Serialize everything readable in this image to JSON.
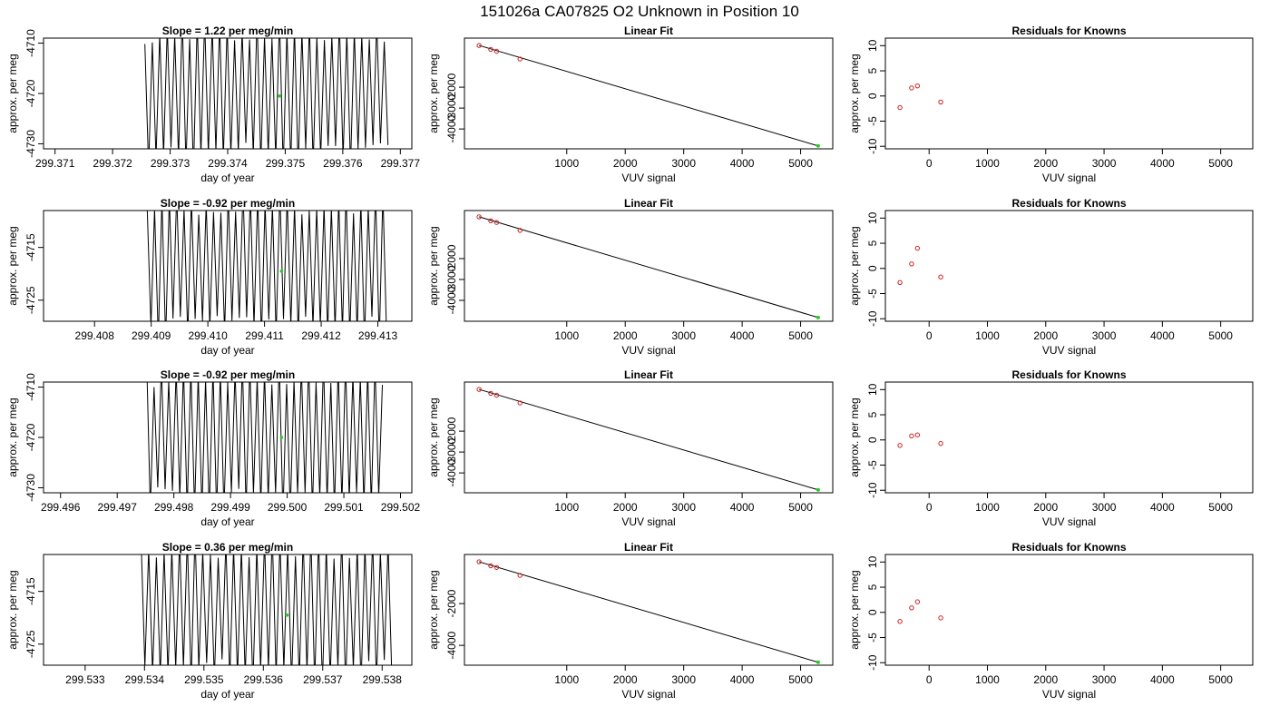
{
  "figure_title": "151026a      CA07825   O2 Unknown in Position  10",
  "chart_data": [
    {
      "type": "line",
      "panel": "timeseries",
      "row": 1,
      "title": "Slope =  1.22  per meg/min",
      "xlabel": "day of year",
      "ylabel": "approx. per meg",
      "xlim": [
        299.3708,
        299.3772
      ],
      "ylim": [
        -4731,
        -4709
      ],
      "xticks": [
        "299.371",
        "299.372",
        "299.373",
        "299.374",
        "299.375",
        "299.376",
        "299.377"
      ],
      "yticks": [
        "-4710",
        "-4720",
        "-4730"
      ],
      "trace": {
        "start": 299.3725,
        "end": 299.3768,
        "period": 0.00013,
        "offset_x": 6e-05
      },
      "marker": {
        "x": 299.3749,
        "y": -4720.5,
        "color": "#22cc22"
      },
      "line_color": "#000000"
    },
    {
      "type": "scatter",
      "panel": "linear_fit",
      "row": 1,
      "title": "Linear Fit",
      "xlabel": "VUV signal",
      "ylabel": "approx. per meg",
      "xlim": [
        -750,
        5550
      ],
      "ylim": [
        -4950,
        350
      ],
      "xticks": [
        "1000",
        "2000",
        "3000",
        "4000",
        "5000"
      ],
      "yticks": [
        "-2000",
        "-3000",
        "-4000"
      ],
      "points": [
        [
          -500,
          0
        ],
        [
          -300,
          -190
        ],
        [
          -200,
          -280
        ],
        [
          200,
          -650
        ]
      ],
      "unknown": [
        5300,
        -4810
      ],
      "fit_line": [
        [
          -500,
          0
        ],
        [
          5300,
          -4810
        ]
      ],
      "point_color": "#cc2222",
      "unknown_color": "#22cc22"
    },
    {
      "type": "scatter",
      "panel": "residuals",
      "row": 1,
      "title": "Residuals for Knowns",
      "xlabel": "VUV signal",
      "ylabel": "",
      "xlim": [
        -750,
        5550
      ],
      "ylim": [
        -10.5,
        11.5
      ],
      "xticks": [
        "0",
        "1000",
        "2000",
        "3000",
        "4000",
        "5000"
      ],
      "yticks": [
        "10",
        "5",
        "0",
        "-5",
        "-10"
      ],
      "points": [
        [
          -500,
          -2.3
        ],
        [
          -300,
          1.6
        ],
        [
          -200,
          2.0
        ],
        [
          200,
          -1.2
        ]
      ],
      "point_color": "#cc2222"
    },
    {
      "type": "line",
      "panel": "timeseries",
      "row": 2,
      "title": "Slope =  -0.92  per meg/min",
      "xlabel": "day of year",
      "ylabel": "approx. per meg",
      "xlim": [
        299.4071,
        299.4136
      ],
      "ylim": [
        -4729,
        -4708
      ],
      "xticks": [
        "299.408",
        "299.409",
        "299.410",
        "299.411",
        "299.412",
        "299.413"
      ],
      "yticks": [
        "-4715",
        "-4725"
      ],
      "trace": {
        "start": 299.4089,
        "end": 299.4132,
        "period": 0.00013,
        "offset_x": 3e-05
      },
      "marker": {
        "x": 299.4113,
        "y": -4719.5,
        "color": "#22cc22"
      },
      "line_color": "#000000"
    },
    {
      "type": "scatter",
      "panel": "linear_fit",
      "row": 2,
      "title": "Linear Fit",
      "xlabel": "VUV signal",
      "ylabel": "approx. per meg",
      "xlim": [
        -750,
        5550
      ],
      "ylim": [
        -5000,
        300
      ],
      "xticks": [
        "1000",
        "2000",
        "3000",
        "4000",
        "5000"
      ],
      "yticks": [
        "-2000",
        "-3000",
        "-4000"
      ],
      "points": [
        [
          -500,
          0
        ],
        [
          -300,
          -190
        ],
        [
          -200,
          -270
        ],
        [
          200,
          -650
        ]
      ],
      "unknown": [
        5300,
        -4820
      ],
      "fit_line": [
        [
          -500,
          0
        ],
        [
          5300,
          -4820
        ]
      ],
      "point_color": "#cc2222",
      "unknown_color": "#22cc22"
    },
    {
      "type": "scatter",
      "panel": "residuals",
      "row": 2,
      "title": "Residuals for Knowns",
      "xlabel": "VUV signal",
      "ylabel": "",
      "xlim": [
        -750,
        5550
      ],
      "ylim": [
        -10.5,
        11.5
      ],
      "xticks": [
        "0",
        "1000",
        "2000",
        "3000",
        "4000",
        "5000"
      ],
      "yticks": [
        "10",
        "5",
        "0",
        "-5",
        "-10"
      ],
      "points": [
        [
          -500,
          -2.8
        ],
        [
          -300,
          0.9
        ],
        [
          -200,
          4.0
        ],
        [
          200,
          -1.7
        ]
      ],
      "point_color": "#cc2222"
    },
    {
      "type": "line",
      "panel": "timeseries",
      "row": 3,
      "title": "Slope =  -0.92  per meg/min",
      "xlabel": "day of year",
      "ylabel": "approx. per meg",
      "xlim": [
        299.4957,
        299.5022
      ],
      "ylim": [
        -4731,
        -4709
      ],
      "xticks": [
        "299.496",
        "299.497",
        "299.498",
        "299.499",
        "299.500",
        "299.501",
        "299.502"
      ],
      "yticks": [
        "-4710",
        "-4720",
        "-4730"
      ],
      "trace": {
        "start": 299.4975,
        "end": 299.5017,
        "period": 0.00013,
        "offset_x": 2e-05
      },
      "marker": {
        "x": 299.4999,
        "y": -4720.0,
        "color": "#22cc22"
      },
      "line_color": "#000000"
    },
    {
      "type": "scatter",
      "panel": "linear_fit",
      "row": 3,
      "title": "Linear Fit",
      "xlabel": "VUV signal",
      "ylabel": "approx. per meg",
      "xlim": [
        -750,
        5550
      ],
      "ylim": [
        -4950,
        350
      ],
      "xticks": [
        "1000",
        "2000",
        "3000",
        "4000",
        "5000"
      ],
      "yticks": [
        "-2000",
        "-3000",
        "-4000"
      ],
      "points": [
        [
          -500,
          0
        ],
        [
          -300,
          -190
        ],
        [
          -200,
          -280
        ],
        [
          200,
          -650
        ]
      ],
      "unknown": [
        5300,
        -4810
      ],
      "fit_line": [
        [
          -500,
          0
        ],
        [
          5300,
          -4810
        ]
      ],
      "point_color": "#cc2222",
      "unknown_color": "#22cc22"
    },
    {
      "type": "scatter",
      "panel": "residuals",
      "row": 3,
      "title": "Residuals for Knowns",
      "xlabel": "VUV signal",
      "ylabel": "",
      "xlim": [
        -750,
        5550
      ],
      "ylim": [
        -10.5,
        11.5
      ],
      "xticks": [
        "0",
        "1000",
        "2000",
        "3000",
        "4000",
        "5000"
      ],
      "yticks": [
        "10",
        "5",
        "0",
        "-5",
        "-10"
      ],
      "points": [
        [
          -500,
          -1.1
        ],
        [
          -300,
          0.8
        ],
        [
          -200,
          1.0
        ],
        [
          200,
          -0.7
        ]
      ],
      "point_color": "#cc2222"
    },
    {
      "type": "line",
      "panel": "timeseries",
      "row": 4,
      "title": "Slope =  0.36  per meg/min",
      "xlabel": "day of year",
      "ylabel": "approx. per meg",
      "xlim": [
        299.5323,
        299.5385
      ],
      "ylim": [
        -4729,
        -4708
      ],
      "xticks": [
        "299.533",
        "299.534",
        "299.535",
        "299.536",
        "299.537",
        "299.538"
      ],
      "yticks": [
        "-4715",
        "-4725"
      ],
      "trace": {
        "start": 299.5339,
        "end": 299.5382,
        "period": 0.00013,
        "offset_x": 4e-05
      },
      "marker": {
        "x": 299.5364,
        "y": -4719.5,
        "color": "#22cc22"
      },
      "line_color": "#000000"
    },
    {
      "type": "scatter",
      "panel": "linear_fit",
      "row": 4,
      "title": "Linear Fit",
      "xlabel": "VUV signal",
      "ylabel": "approx. per meg",
      "xlim": [
        -750,
        5550
      ],
      "ylim": [
        -4950,
        350
      ],
      "xticks": [
        "1000",
        "2000",
        "3000",
        "4000",
        "5000"
      ],
      "yticks": [
        "-2000",
        "-4000"
      ],
      "points": [
        [
          -500,
          0
        ],
        [
          -300,
          -190
        ],
        [
          -200,
          -270
        ],
        [
          200,
          -650
        ]
      ],
      "unknown": [
        5300,
        -4810
      ],
      "fit_line": [
        [
          -500,
          0
        ],
        [
          5300,
          -4810
        ]
      ],
      "point_color": "#cc2222",
      "unknown_color": "#22cc22"
    },
    {
      "type": "scatter",
      "panel": "residuals",
      "row": 4,
      "title": "Residuals for Knowns",
      "xlabel": "VUV signal",
      "ylabel": "",
      "xlim": [
        -750,
        5550
      ],
      "ylim": [
        -10.5,
        11.5
      ],
      "xticks": [
        "0",
        "1000",
        "2000",
        "3000",
        "4000",
        "5000"
      ],
      "yticks": [
        "10",
        "5",
        "0",
        "-5",
        "-10"
      ],
      "points": [
        [
          -500,
          -1.8
        ],
        [
          -300,
          0.9
        ],
        [
          -200,
          2.1
        ],
        [
          200,
          -1.1
        ]
      ],
      "point_color": "#cc2222"
    }
  ]
}
